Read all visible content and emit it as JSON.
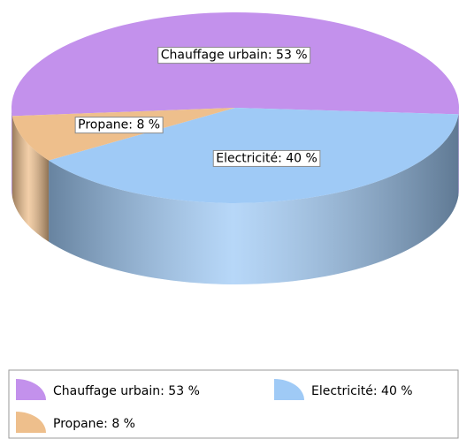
{
  "chart_data": {
    "type": "pie",
    "values": [
      53,
      40,
      8
    ],
    "value_labels": [
      "Chauffage urbain: 53 %",
      "Electricité: 40 %",
      "Propane: 8 %"
    ],
    "colors": [
      "#c391ec",
      "#9fcaf6",
      "#eebf8c"
    ],
    "start_angle": 175,
    "legend": "bottom"
  }
}
